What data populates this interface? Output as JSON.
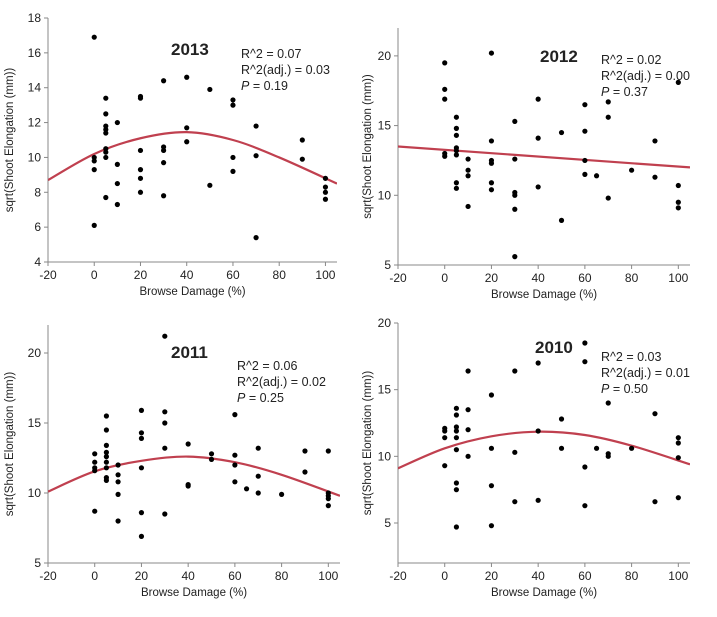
{
  "chart_data": [
    {
      "type": "scatter",
      "title": "2013",
      "xlabel": "Browse Damage (%)",
      "ylabel": "sqrt(Shoot Elongation (mm))",
      "xlim": [
        -20,
        105
      ],
      "ylim": [
        4,
        18
      ],
      "x_ticks": [
        -20,
        0,
        20,
        40,
        60,
        80,
        100
      ],
      "y_ticks": [
        4,
        6,
        8,
        10,
        12,
        14,
        16,
        18
      ],
      "grid": false,
      "stats": {
        "r2": "R^2 = 0.07",
        "r2adj": "R^2(adj.) = 0.03",
        "p_label": "P",
        "p_value": " = 0.19"
      },
      "fit": {
        "type": "quadratic",
        "points": [
          [
            -20,
            8.7
          ],
          [
            0,
            10.2
          ],
          [
            20,
            11.1
          ],
          [
            40,
            11.45
          ],
          [
            60,
            11.0
          ],
          [
            80,
            10.0
          ],
          [
            105,
            8.5
          ]
        ],
        "color": "#c0404f"
      },
      "points": [
        [
          0,
          16.9
        ],
        [
          0,
          10
        ],
        [
          0,
          9.8
        ],
        [
          0,
          9.3
        ],
        [
          0,
          6.1
        ],
        [
          5,
          13.4
        ],
        [
          5,
          12.5
        ],
        [
          5,
          11.8
        ],
        [
          5,
          11.6
        ],
        [
          5,
          11.4
        ],
        [
          5,
          10.5
        ],
        [
          5,
          10.3
        ],
        [
          5,
          10.0
        ],
        [
          5,
          7.7
        ],
        [
          10,
          12.0
        ],
        [
          10,
          9.6
        ],
        [
          10,
          8.5
        ],
        [
          10,
          7.3
        ],
        [
          20,
          13.5
        ],
        [
          20,
          13.4
        ],
        [
          20,
          10.4
        ],
        [
          20,
          9.3
        ],
        [
          20,
          8.8
        ],
        [
          20,
          8.0
        ],
        [
          30,
          14.4
        ],
        [
          30,
          10.6
        ],
        [
          30,
          10.4
        ],
        [
          30,
          9.7
        ],
        [
          30,
          7.8
        ],
        [
          40,
          14.6
        ],
        [
          40,
          11.7
        ],
        [
          40,
          10.9
        ],
        [
          50,
          13.9
        ],
        [
          50,
          8.4
        ],
        [
          60,
          13.3
        ],
        [
          60,
          13.0
        ],
        [
          60,
          10.0
        ],
        [
          60,
          9.2
        ],
        [
          70,
          11.8
        ],
        [
          70,
          10.1
        ],
        [
          70,
          5.4
        ],
        [
          90,
          11.0
        ],
        [
          90,
          9.9
        ],
        [
          100,
          8.8
        ],
        [
          100,
          8.3
        ],
        [
          100,
          8.0
        ],
        [
          100,
          7.6
        ]
      ]
    },
    {
      "type": "scatter",
      "title": "2012",
      "xlabel": "Browse Damage (%)",
      "ylabel": "sqrt(Shoot Elongation (mm))",
      "xlim": [
        -20,
        105
      ],
      "ylim": [
        5,
        22
      ],
      "x_ticks": [
        -20,
        0,
        20,
        40,
        60,
        80,
        100
      ],
      "y_ticks": [
        5,
        10,
        15,
        20
      ],
      "grid": false,
      "stats": {
        "r2": "R^2 = 0.02",
        "r2adj": "R^2(adj.) = 0.00",
        "p_label": "P",
        "p_value": " = 0.37"
      },
      "fit": {
        "type": "linear",
        "points": [
          [
            -20,
            13.5
          ],
          [
            105,
            12.0
          ]
        ],
        "color": "#c0404f"
      },
      "points": [
        [
          0,
          19.5
        ],
        [
          0,
          17.6
        ],
        [
          0,
          16.9
        ],
        [
          0,
          13.0
        ],
        [
          0,
          12.8
        ],
        [
          5,
          15.6
        ],
        [
          5,
          14.8
        ],
        [
          5,
          14.3
        ],
        [
          5,
          13.4
        ],
        [
          5,
          13.2
        ],
        [
          5,
          12.9
        ],
        [
          5,
          10.9
        ],
        [
          5,
          10.5
        ],
        [
          10,
          12.6
        ],
        [
          10,
          11.8
        ],
        [
          10,
          11.4
        ],
        [
          10,
          9.2
        ],
        [
          20,
          20.2
        ],
        [
          20,
          13.9
        ],
        [
          20,
          12.5
        ],
        [
          20,
          12.3
        ],
        [
          20,
          10.9
        ],
        [
          20,
          10.4
        ],
        [
          30,
          15.3
        ],
        [
          30,
          12.6
        ],
        [
          30,
          10.2
        ],
        [
          30,
          10.0
        ],
        [
          30,
          9.0
        ],
        [
          30,
          5.6
        ],
        [
          40,
          16.9
        ],
        [
          40,
          14.1
        ],
        [
          40,
          10.6
        ],
        [
          50,
          14.5
        ],
        [
          50,
          8.2
        ],
        [
          60,
          16.5
        ],
        [
          60,
          14.6
        ],
        [
          60,
          12.5
        ],
        [
          60,
          11.5
        ],
        [
          65,
          11.4
        ],
        [
          70,
          16.7
        ],
        [
          70,
          15.6
        ],
        [
          70,
          9.8
        ],
        [
          80,
          11.8
        ],
        [
          90,
          13.9
        ],
        [
          90,
          11.3
        ],
        [
          100,
          18.1
        ],
        [
          100,
          10.7
        ],
        [
          100,
          9.5
        ],
        [
          100,
          9.1
        ]
      ]
    },
    {
      "type": "scatter",
      "title": "2011",
      "xlabel": "Browse Damage (%)",
      "ylabel": "sqrt(Shoot Elongation (mm))",
      "xlim": [
        -20,
        105
      ],
      "ylim": [
        5,
        22
      ],
      "x_ticks": [
        -20,
        0,
        20,
        40,
        60,
        80,
        100
      ],
      "y_ticks": [
        5,
        10,
        15,
        20
      ],
      "grid": false,
      "stats": {
        "r2": "R^2 = 0.06",
        "r2adj": "R^2(adj.) = 0.02",
        "p_label": "P",
        "p_value": " = 0.25"
      },
      "fit": {
        "type": "quadratic",
        "points": [
          [
            -20,
            10.1
          ],
          [
            0,
            11.55
          ],
          [
            20,
            12.3
          ],
          [
            40,
            12.6
          ],
          [
            60,
            12.2
          ],
          [
            80,
            11.3
          ],
          [
            105,
            9.8
          ]
        ],
        "color": "#c0404f"
      },
      "points": [
        [
          0,
          12.8
        ],
        [
          0,
          12.2
        ],
        [
          0,
          11.8
        ],
        [
          0,
          11.6
        ],
        [
          0,
          8.7
        ],
        [
          5,
          15.5
        ],
        [
          5,
          14.5
        ],
        [
          5,
          13.4
        ],
        [
          5,
          12.9
        ],
        [
          5,
          12.6
        ],
        [
          5,
          12.2
        ],
        [
          5,
          11.8
        ],
        [
          5,
          11.1
        ],
        [
          5,
          10.9
        ],
        [
          10,
          12.0
        ],
        [
          10,
          11.3
        ],
        [
          10,
          10.8
        ],
        [
          10,
          9.9
        ],
        [
          10,
          8.0
        ],
        [
          20,
          15.9
        ],
        [
          20,
          14.3
        ],
        [
          20,
          13.9
        ],
        [
          20,
          11.8
        ],
        [
          20,
          8.6
        ],
        [
          20,
          6.9
        ],
        [
          30,
          21.2
        ],
        [
          30,
          15.8
        ],
        [
          30,
          15.0
        ],
        [
          30,
          13.2
        ],
        [
          30,
          8.5
        ],
        [
          40,
          13.5
        ],
        [
          40,
          10.6
        ],
        [
          40,
          10.5
        ],
        [
          50,
          12.8
        ],
        [
          50,
          12.4
        ],
        [
          60,
          15.6
        ],
        [
          60,
          12.7
        ],
        [
          60,
          12.0
        ],
        [
          60,
          10.8
        ],
        [
          65,
          10.3
        ],
        [
          70,
          13.2
        ],
        [
          70,
          11.2
        ],
        [
          70,
          10.0
        ],
        [
          80,
          9.9
        ],
        [
          90,
          13.0
        ],
        [
          90,
          11.5
        ],
        [
          100,
          13.0
        ],
        [
          100,
          10.0
        ],
        [
          100,
          9.8
        ],
        [
          100,
          9.6
        ],
        [
          100,
          9.1
        ]
      ]
    },
    {
      "type": "scatter",
      "title": "2010",
      "xlabel": "Browse Damage (%)",
      "ylabel": "sqrt(Shoot Elongation (mm))",
      "xlim": [
        -20,
        105
      ],
      "ylim": [
        2,
        20
      ],
      "x_ticks": [
        -20,
        0,
        20,
        40,
        60,
        80,
        100
      ],
      "y_ticks": [
        5,
        10,
        15,
        20
      ],
      "grid": false,
      "stats": {
        "r2": "R^2 = 0.03",
        "r2adj": "R^2(adj.) = 0.01",
        "p_label": "P",
        "p_value": " = 0.50"
      },
      "fit": {
        "type": "quadratic",
        "points": [
          [
            -20,
            9.1
          ],
          [
            0,
            10.6
          ],
          [
            20,
            11.5
          ],
          [
            40,
            11.85
          ],
          [
            60,
            11.6
          ],
          [
            80,
            10.8
          ],
          [
            105,
            9.4
          ]
        ],
        "color": "#c0404f"
      },
      "points": [
        [
          0,
          12.1
        ],
        [
          0,
          11.9
        ],
        [
          0,
          11.4
        ],
        [
          0,
          9.3
        ],
        [
          5,
          13.6
        ],
        [
          5,
          13.1
        ],
        [
          5,
          12.2
        ],
        [
          5,
          11.9
        ],
        [
          5,
          11.4
        ],
        [
          5,
          10.5
        ],
        [
          5,
          8.0
        ],
        [
          5,
          7.5
        ],
        [
          5,
          4.7
        ],
        [
          10,
          16.4
        ],
        [
          10,
          13.5
        ],
        [
          10,
          12.0
        ],
        [
          10,
          10.0
        ],
        [
          20,
          14.6
        ],
        [
          20,
          10.6
        ],
        [
          20,
          7.8
        ],
        [
          20,
          4.8
        ],
        [
          30,
          16.4
        ],
        [
          30,
          10.3
        ],
        [
          30,
          6.6
        ],
        [
          40,
          17.0
        ],
        [
          40,
          11.9
        ],
        [
          40,
          6.7
        ],
        [
          50,
          12.8
        ],
        [
          50,
          10.6
        ],
        [
          60,
          18.5
        ],
        [
          60,
          17.1
        ],
        [
          60,
          9.2
        ],
        [
          60,
          6.3
        ],
        [
          65,
          10.6
        ],
        [
          70,
          14.0
        ],
        [
          70,
          10.2
        ],
        [
          70,
          10.0
        ],
        [
          80,
          10.6
        ],
        [
          90,
          13.2
        ],
        [
          90,
          6.6
        ],
        [
          100,
          11.4
        ],
        [
          100,
          11.0
        ],
        [
          100,
          9.9
        ],
        [
          100,
          6.9
        ]
      ]
    }
  ]
}
